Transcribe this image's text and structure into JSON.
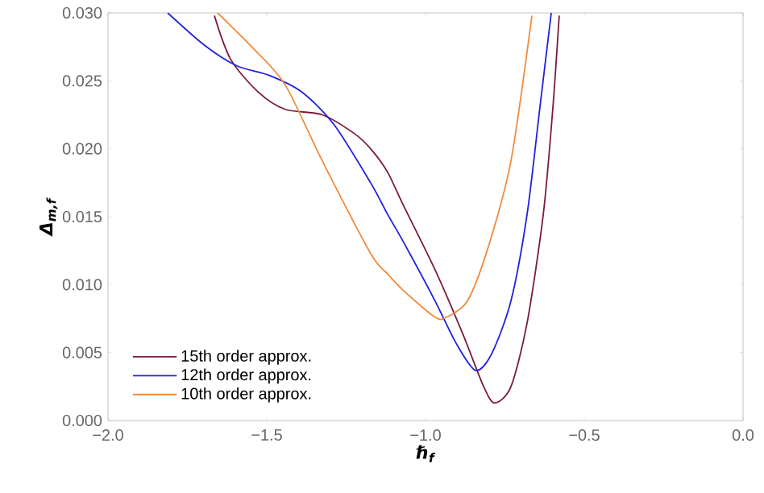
{
  "chart_data": {
    "type": "line",
    "xlabel": "ℏ$_{f}$",
    "ylabel": "Δ$_{m,f}$",
    "xlim": [
      -2.0,
      0.0
    ],
    "ylim": [
      0.0,
      0.03
    ],
    "xticks": [
      {
        "value": -2.0,
        "label": "−2.0"
      },
      {
        "value": -1.5,
        "label": "−1.5"
      },
      {
        "value": -1.0,
        "label": "−1.0"
      },
      {
        "value": -0.5,
        "label": "−0.5"
      },
      {
        "value": 0.0,
        "label": "0.0"
      }
    ],
    "yticks": [
      {
        "value": 0.0,
        "label": "0.000"
      },
      {
        "value": 0.005,
        "label": "0.005"
      },
      {
        "value": 0.01,
        "label": "0.010"
      },
      {
        "value": 0.015,
        "label": "0.015"
      },
      {
        "value": 0.02,
        "label": "0.020"
      },
      {
        "value": 0.025,
        "label": "0.025"
      },
      {
        "value": 0.03,
        "label": "0.030"
      }
    ],
    "grid": false,
    "legend": "bottom left",
    "marker": "none",
    "line_style": "solid",
    "series": [
      {
        "name": "15th order approx.",
        "color": "#7b1a3c",
        "x": [
          -1.665,
          -1.614,
          -1.528,
          -1.442,
          -1.325,
          -1.223,
          -1.173,
          -1.12,
          -1.071,
          -0.97,
          -0.883,
          -0.817,
          -0.782,
          -0.731,
          -0.68,
          -0.629,
          -0.599,
          -0.579
        ],
        "values": [
          0.0298,
          0.0266,
          0.0242,
          0.0229,
          0.0225,
          0.0211,
          0.02,
          0.0183,
          0.0159,
          0.0111,
          0.0064,
          0.0025,
          0.0013,
          0.0025,
          0.0072,
          0.0152,
          0.023,
          0.0298
        ]
      },
      {
        "name": "12th order approx.",
        "color": "#1f1fe0",
        "x": [
          -1.812,
          -1.695,
          -1.594,
          -1.492,
          -1.391,
          -1.289,
          -1.173,
          -1.12,
          -1.071,
          -0.97,
          -0.904,
          -0.843,
          -0.792,
          -0.731,
          -0.68,
          -0.64,
          -0.604
        ],
        "values": [
          0.03,
          0.0276,
          0.0261,
          0.0254,
          0.0242,
          0.0218,
          0.0175,
          0.0152,
          0.0132,
          0.0088,
          0.0057,
          0.0037,
          0.0049,
          0.0088,
          0.0152,
          0.023,
          0.03
        ]
      },
      {
        "name": "10th order approx.",
        "color": "#f28a3c",
        "x": [
          -1.655,
          -1.543,
          -1.442,
          -1.325,
          -1.173,
          -1.12,
          -1.071,
          -0.97,
          -0.934,
          -0.868,
          -0.802,
          -0.731,
          -0.665
        ],
        "values": [
          0.03,
          0.0274,
          0.0247,
          0.0191,
          0.0123,
          0.0108,
          0.0096,
          0.0076,
          0.0076,
          0.0088,
          0.0128,
          0.0191,
          0.0298
        ]
      }
    ]
  }
}
